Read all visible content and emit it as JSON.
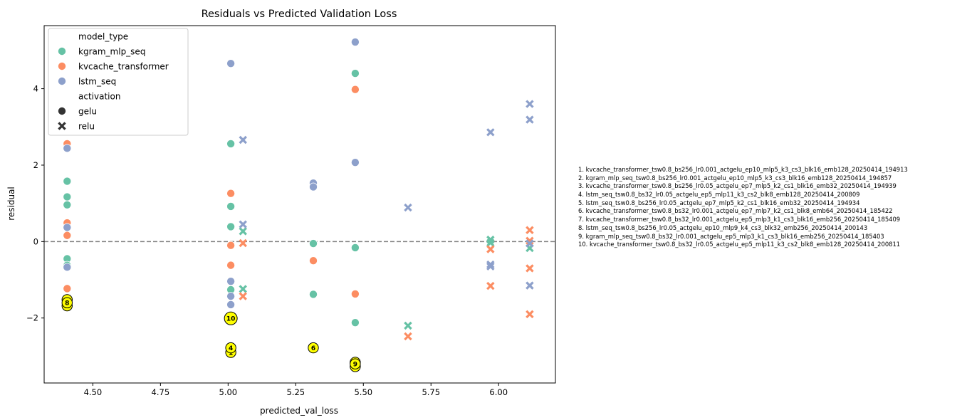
{
  "chart_data": {
    "type": "scatter",
    "title": "Residuals vs Predicted Validation Loss",
    "xlabel": "predicted_val_loss",
    "ylabel": "residual",
    "xlim": [
      4.32,
      6.21
    ],
    "ylim": [
      -3.7,
      5.65
    ],
    "xticks": [
      "4.50",
      "4.75",
      "5.00",
      "5.25",
      "5.50",
      "5.75",
      "6.00"
    ],
    "xtick_values": [
      4.5,
      4.75,
      5.0,
      5.25,
      5.5,
      5.75,
      6.0
    ],
    "yticks": [
      "−2",
      "0",
      "2",
      "4"
    ],
    "ytick_values": [
      -2,
      0,
      2,
      4
    ],
    "reference_line": {
      "y": 0,
      "style": "dashed",
      "color": "#808080"
    },
    "grid": false,
    "legend": {
      "placement": "top-left",
      "hue_title": "model_type",
      "style_title": "activation",
      "hue_entries": [
        {
          "name": "kgram_mlp_seq",
          "color": "#66c2a5"
        },
        {
          "name": "kvcache_transformer",
          "color": "#fc8d62"
        },
        {
          "name": "lstm_seq",
          "color": "#8da0cb"
        }
      ],
      "style_entries": [
        {
          "name": "gelu",
          "marker": "circle"
        },
        {
          "name": "relu",
          "marker": "x"
        }
      ]
    },
    "series": [
      {
        "name": "kgram_mlp_seq",
        "activation": "gelu",
        "color": "#66c2a5",
        "marker": "circle",
        "points": [
          [
            4.405,
            1.58
          ],
          [
            4.405,
            1.17
          ],
          [
            4.405,
            0.96
          ],
          [
            4.405,
            -0.45
          ],
          [
            4.405,
            -0.62
          ],
          [
            4.405,
            -1.52
          ],
          [
            4.405,
            -1.6
          ],
          [
            5.01,
            2.56
          ],
          [
            5.01,
            0.92
          ],
          [
            5.01,
            0.39
          ],
          [
            5.01,
            -1.26
          ],
          [
            5.315,
            -0.05
          ],
          [
            5.315,
            -1.38
          ],
          [
            5.47,
            4.4
          ],
          [
            5.47,
            -0.16
          ],
          [
            5.47,
            -2.12
          ]
        ]
      },
      {
        "name": "kgram_mlp_seq",
        "activation": "relu",
        "color": "#66c2a5",
        "marker": "x",
        "points": [
          [
            5.055,
            0.27
          ],
          [
            5.055,
            -1.24
          ],
          [
            5.665,
            -2.2
          ],
          [
            5.97,
            0.05
          ],
          [
            5.97,
            -0.03
          ],
          [
            6.115,
            -0.17
          ]
        ]
      },
      {
        "name": "kvcache_transformer",
        "activation": "gelu",
        "color": "#fc8d62",
        "marker": "circle",
        "points": [
          [
            4.405,
            2.56
          ],
          [
            4.405,
            0.49
          ],
          [
            4.405,
            0.16
          ],
          [
            4.405,
            -1.23
          ],
          [
            5.01,
            1.26
          ],
          [
            5.01,
            -0.1
          ],
          [
            5.01,
            -0.62
          ],
          [
            5.315,
            -0.5
          ],
          [
            5.47,
            3.98
          ],
          [
            5.47,
            -1.37
          ]
        ]
      },
      {
        "name": "kvcache_transformer",
        "activation": "relu",
        "color": "#fc8d62",
        "marker": "x",
        "points": [
          [
            5.055,
            -0.04
          ],
          [
            5.055,
            -1.43
          ],
          [
            5.665,
            -2.48
          ],
          [
            5.97,
            -0.2
          ],
          [
            5.97,
            -1.16
          ],
          [
            6.115,
            0.3
          ],
          [
            6.115,
            0.02
          ],
          [
            6.115,
            -0.7
          ],
          [
            6.115,
            -1.9
          ]
        ]
      },
      {
        "name": "lstm_seq",
        "activation": "gelu",
        "color": "#8da0cb",
        "marker": "circle",
        "points": [
          [
            4.405,
            2.44
          ],
          [
            4.405,
            0.37
          ],
          [
            4.405,
            -0.67
          ],
          [
            5.01,
            4.66
          ],
          [
            5.01,
            -1.04
          ],
          [
            5.01,
            -1.43
          ],
          [
            5.01,
            -1.65
          ],
          [
            5.315,
            1.53
          ],
          [
            5.315,
            1.43
          ],
          [
            5.47,
            5.22
          ],
          [
            5.47,
            2.07
          ]
        ]
      },
      {
        "name": "lstm_seq",
        "activation": "relu",
        "color": "#8da0cb",
        "marker": "x",
        "points": [
          [
            5.055,
            2.66
          ],
          [
            5.055,
            0.45
          ],
          [
            5.665,
            0.89
          ],
          [
            5.97,
            2.86
          ],
          [
            5.97,
            -0.6
          ],
          [
            5.97,
            -0.65
          ],
          [
            6.115,
            3.6
          ],
          [
            6.115,
            3.19
          ],
          [
            6.115,
            -0.05
          ],
          [
            6.115,
            -1.15
          ]
        ]
      }
    ],
    "highlighted_points": [
      {
        "label": "1",
        "x": 5.01,
        "y": -2.9
      },
      {
        "label": "2",
        "x": 4.405,
        "y": -1.68
      },
      {
        "label": "3",
        "x": 5.47,
        "y": -3.27
      },
      {
        "label": "4",
        "x": 5.01,
        "y": -2.78
      },
      {
        "label": "5",
        "x": 5.47,
        "y": -3.16
      },
      {
        "label": "6",
        "x": 5.315,
        "y": -2.78
      },
      {
        "label": "7",
        "x": 4.405,
        "y": -1.52
      },
      {
        "label": "8",
        "x": 4.405,
        "y": -1.6
      },
      {
        "label": "9",
        "x": 5.47,
        "y": -3.2
      },
      {
        "label": "10",
        "x": 5.01,
        "y": -2.01
      }
    ],
    "highlight_color": "#ffff00",
    "annotations": [
      "1. kvcache_transformer_tsw0.8_bs256_lr0.001_actgelu_ep10_mlp5_k3_cs3_blk16_emb128_20250414_194913",
      "2. kgram_mlp_seq_tsw0.8_bs256_lr0.001_actgelu_ep10_mlp5_k3_cs3_blk16_emb128_20250414_194857",
      "3. kvcache_transformer_tsw0.8_bs256_lr0.05_actgelu_ep7_mlp5_k2_cs1_blk16_emb32_20250414_194939",
      "4. lstm_seq_tsw0.8_bs32_lr0.05_actgelu_ep5_mlp11_k3_cs2_blk8_emb128_20250414_200809",
      "5. lstm_seq_tsw0.8_bs256_lr0.05_actgelu_ep7_mlp5_k2_cs1_blk16_emb32_20250414_194934",
      "6. kvcache_transformer_tsw0.8_bs32_lr0.001_actgelu_ep7_mlp7_k2_cs1_blk8_emb64_20250414_185422",
      "7. kvcache_transformer_tsw0.8_bs32_lr0.001_actgelu_ep5_mlp3_k1_cs3_blk16_emb256_20250414_185409",
      "8. lstm_seq_tsw0.8_bs256_lr0.05_actgelu_ep10_mlp9_k4_cs3_blk32_emb256_20250414_200143",
      "9. kgram_mlp_seq_tsw0.8_bs32_lr0.001_actgelu_ep5_mlp3_k1_cs3_blk16_emb256_20250414_185403",
      "10. kvcache_transformer_tsw0.8_bs32_lr0.05_actgelu_ep5_mlp11_k3_cs2_blk8_emb128_20250414_200811"
    ]
  }
}
